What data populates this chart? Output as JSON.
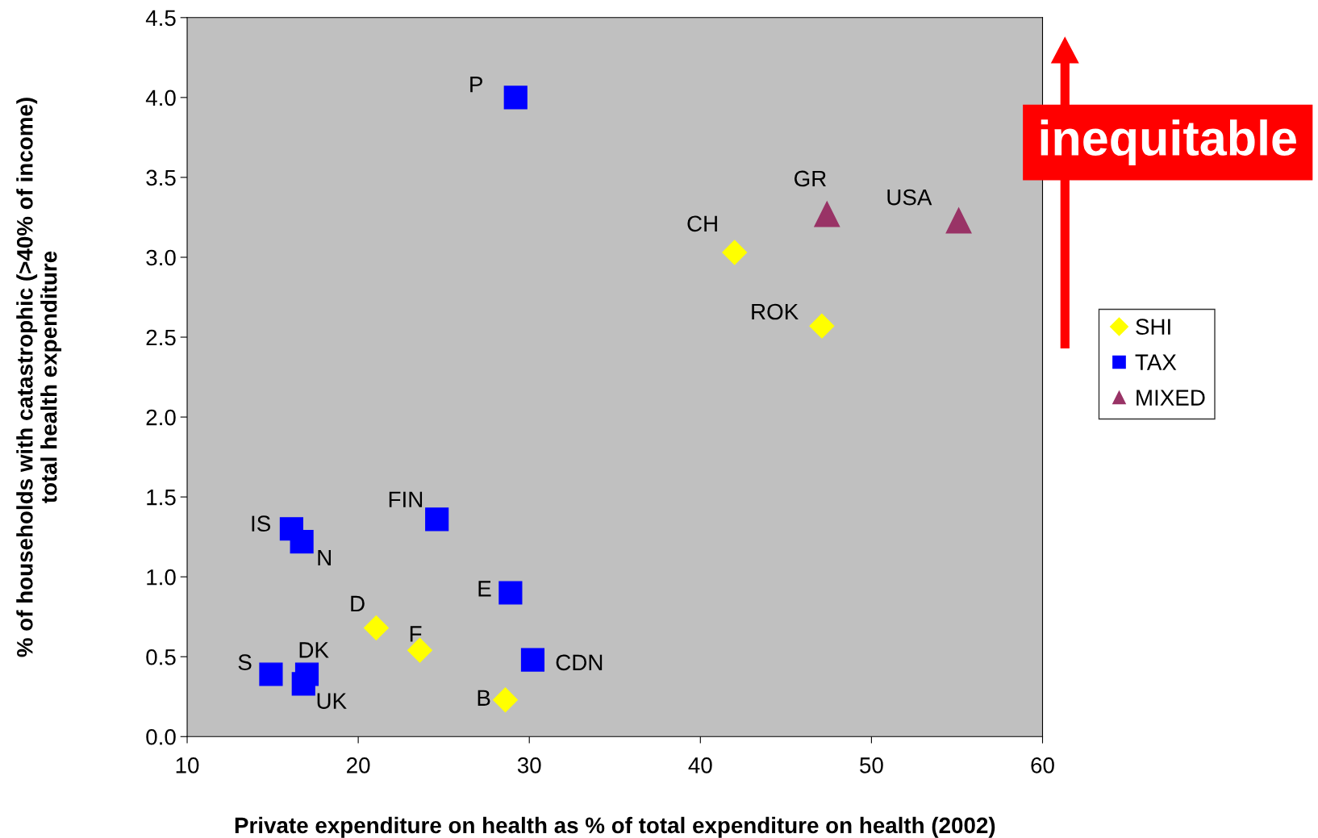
{
  "chart_data": {
    "type": "scatter",
    "xlabel": "Private expenditure on health as % of total expenditure on health (2002)",
    "ylabel": "% of households with catastrophic (>40% of income)\ntotal health expenditure",
    "xlim": [
      10,
      60
    ],
    "xticks": [
      10,
      20,
      30,
      40,
      50,
      60
    ],
    "ylim": [
      0,
      4.5
    ],
    "yticks": [
      {
        "value": 0,
        "label": "0.0"
      },
      {
        "value": 0.5,
        "label": "0.5"
      },
      {
        "value": 1,
        "label": "1.0"
      },
      {
        "value": 1.5,
        "label": "1.5"
      },
      {
        "value": 2,
        "label": "2.0"
      },
      {
        "value": 2.5,
        "label": "2.5"
      },
      {
        "value": 3,
        "label": "3.0"
      },
      {
        "value": 3.5,
        "label": "3.5"
      },
      {
        "value": 4,
        "label": "4.0"
      },
      {
        "value": 4.5,
        "label": "4.5"
      }
    ],
    "grid": false,
    "legend": "right",
    "series": [
      {
        "name": "SHI",
        "color": "#ffff00",
        "marker": "diamond",
        "x": [
          42.0,
          47.1,
          21.05,
          23.6,
          28.6
        ],
        "values": [
          3.03,
          2.57,
          0.68,
          0.54,
          0.23
        ]
      },
      {
        "name": "TAX",
        "color": "#0000ff",
        "marker": "square",
        "x": [
          29.2,
          24.6,
          16.1,
          16.7,
          28.9,
          30.2,
          14.9,
          17.0,
          16.8
        ],
        "values": [
          4.0,
          1.36,
          1.3,
          1.22,
          0.9,
          0.48,
          0.39,
          0.39,
          0.33
        ]
      },
      {
        "name": "MIXED",
        "color": "#993366",
        "marker": "triangle",
        "x": [
          47.4,
          55.1
        ],
        "values": [
          3.27,
          3.23
        ]
      }
    ],
    "annotations": [
      {
        "text": "CH",
        "x": 42.0,
        "y": 3.03
      },
      {
        "text": "ROK",
        "x": 47.1,
        "y": 2.57
      },
      {
        "text": "D",
        "x": 21.05,
        "y": 0.68
      },
      {
        "text": "F",
        "x": 23.6,
        "y": 0.54
      },
      {
        "text": "B",
        "x": 28.6,
        "y": 0.23
      },
      {
        "text": "P",
        "x": 29.2,
        "y": 4.0
      },
      {
        "text": "FIN",
        "x": 24.6,
        "y": 1.36
      },
      {
        "text": "IS",
        "x": 16.1,
        "y": 1.3
      },
      {
        "text": "N",
        "x": 16.7,
        "y": 1.22
      },
      {
        "text": "E",
        "x": 28.9,
        "y": 0.9
      },
      {
        "text": "CDN",
        "x": 30.2,
        "y": 0.48
      },
      {
        "text": "S",
        "x": 14.9,
        "y": 0.39
      },
      {
        "text": "DK",
        "x": 17.0,
        "y": 0.39
      },
      {
        "text": "UK",
        "x": 16.8,
        "y": 0.33
      },
      {
        "text": "GR",
        "x": 47.4,
        "y": 3.27
      },
      {
        "text": "USA",
        "x": 55.1,
        "y": 3.23
      },
      "inequitable"
    ]
  }
}
